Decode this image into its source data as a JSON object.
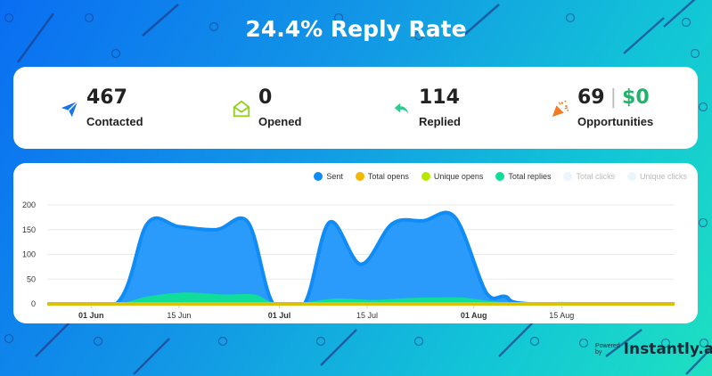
{
  "title": "24.4% Reply Rate",
  "stats": [
    {
      "value": "467",
      "label": "Contacted",
      "icon": "paper-plane-icon",
      "color": "#1a73e8"
    },
    {
      "value": "0",
      "label": "Opened",
      "icon": "open-envelope-icon",
      "color": "#8fd11a"
    },
    {
      "value": "114",
      "label": "Replied",
      "icon": "reply-arrow-icon",
      "color": "#2ecc8f"
    },
    {
      "value": "69",
      "money": "$0",
      "label": "Opportunities",
      "icon": "party-popper-icon",
      "color": "#f47a20"
    }
  ],
  "chart_data": {
    "type": "area",
    "legend_position": "top-right",
    "legend": [
      {
        "name": "Sent",
        "color": "#0f8cf5",
        "active": true
      },
      {
        "name": "Total opens",
        "color": "#f5b800",
        "active": true
      },
      {
        "name": "Unique opens",
        "color": "#b6e800",
        "active": true
      },
      {
        "name": "Total replies",
        "color": "#10dd9a",
        "active": true
      },
      {
        "name": "Total clicks",
        "color": "#eaf6fc",
        "active": false
      },
      {
        "name": "Unique clicks",
        "color": "#eaf6fc",
        "active": false
      }
    ],
    "ylim": [
      0,
      200
    ],
    "yticks": [
      0,
      50,
      100,
      150,
      200
    ],
    "xlim": [
      "2023-05-25",
      "2023-09-02"
    ],
    "xticks": [
      {
        "date": "2023-06-01",
        "label": "01 Jun",
        "bold": true
      },
      {
        "date": "2023-06-15",
        "label": "15 Jun",
        "bold": false
      },
      {
        "date": "2023-07-01",
        "label": "01 Jul",
        "bold": true
      },
      {
        "date": "2023-07-15",
        "label": "15 Jul",
        "bold": false
      },
      {
        "date": "2023-08-01",
        "label": "01 Aug",
        "bold": true
      },
      {
        "date": "2023-08-15",
        "label": "15 Aug",
        "bold": false
      }
    ],
    "grid": true,
    "series": [
      {
        "name": "Sent",
        "points": [
          [
            "2023-05-25",
            0
          ],
          [
            "2023-06-05",
            0
          ],
          [
            "2023-06-10",
            163
          ],
          [
            "2023-06-15",
            156
          ],
          [
            "2023-06-21",
            150
          ],
          [
            "2023-06-26",
            165
          ],
          [
            "2023-06-30",
            0
          ],
          [
            "2023-07-05",
            0
          ],
          [
            "2023-07-09",
            165
          ],
          [
            "2023-07-14",
            80
          ],
          [
            "2023-07-19",
            162
          ],
          [
            "2023-07-24",
            168
          ],
          [
            "2023-07-29",
            175
          ],
          [
            "2023-08-03",
            22
          ],
          [
            "2023-08-06",
            15
          ],
          [
            "2023-08-10",
            0
          ],
          [
            "2023-09-02",
            0
          ]
        ]
      },
      {
        "name": "Total replies",
        "points": [
          [
            "2023-05-25",
            0
          ],
          [
            "2023-06-05",
            0
          ],
          [
            "2023-06-10",
            14
          ],
          [
            "2023-06-16",
            22
          ],
          [
            "2023-06-22",
            18
          ],
          [
            "2023-06-27",
            18
          ],
          [
            "2023-06-30",
            2
          ],
          [
            "2023-07-05",
            2
          ],
          [
            "2023-07-10",
            10
          ],
          [
            "2023-07-16",
            7
          ],
          [
            "2023-07-22",
            11
          ],
          [
            "2023-07-30",
            12
          ],
          [
            "2023-08-04",
            4
          ],
          [
            "2023-08-10",
            1
          ],
          [
            "2023-08-15",
            3
          ],
          [
            "2023-08-22",
            0
          ],
          [
            "2023-09-02",
            0
          ]
        ]
      },
      {
        "name": "Total opens",
        "points": [
          [
            "2023-05-25",
            0
          ],
          [
            "2023-09-02",
            0
          ]
        ]
      }
    ]
  },
  "footer": {
    "powered": "Powered by",
    "brand": "Instantly.ai"
  }
}
